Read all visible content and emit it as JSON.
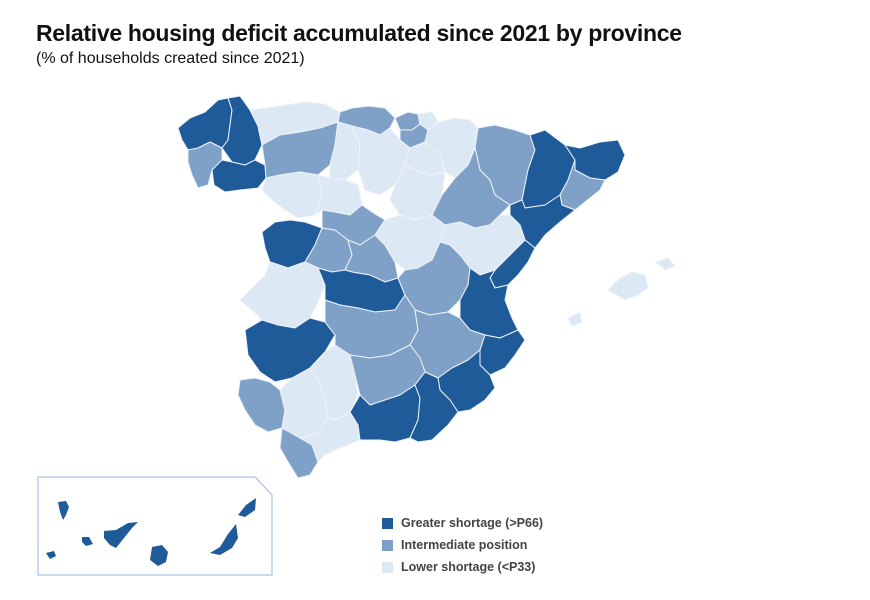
{
  "title": "Relative housing deficit accumulated since 2021 by province",
  "subtitle": "(% of households created since 2021)",
  "colors": {
    "high": "#1f5b99",
    "mid": "#7fa1c8",
    "low": "#dce8f4",
    "inset_border": "#a9c4e0"
  },
  "legend": [
    {
      "key": "high",
      "label": "Greater shortage (>P66)"
    },
    {
      "key": "mid",
      "label": "Intermediate position"
    },
    {
      "key": "low",
      "label": "Lower shortage (<P33)"
    }
  ],
  "chart_data": {
    "type": "choropleth",
    "title": "Relative housing deficit accumulated since 2021 by province",
    "subtitle": "(% of households created since 2021)",
    "classes": [
      "Greater shortage (>P66)",
      "Intermediate position",
      "Lower shortage (<P33)"
    ],
    "legend_position": "bottom-center",
    "regions": [
      {
        "name": "A Coruña",
        "class": "high"
      },
      {
        "name": "Lugo",
        "class": "high"
      },
      {
        "name": "Pontevedra",
        "class": "mid"
      },
      {
        "name": "Ourense",
        "class": "high"
      },
      {
        "name": "Asturias",
        "class": "low"
      },
      {
        "name": "Cantabria",
        "class": "mid"
      },
      {
        "name": "Bizkaia",
        "class": "mid"
      },
      {
        "name": "Gipuzkoa",
        "class": "low"
      },
      {
        "name": "Araba",
        "class": "mid"
      },
      {
        "name": "Navarra",
        "class": "low"
      },
      {
        "name": "León",
        "class": "mid"
      },
      {
        "name": "Palencia",
        "class": "low"
      },
      {
        "name": "Burgos",
        "class": "low"
      },
      {
        "name": "La Rioja",
        "class": "low"
      },
      {
        "name": "Zamora",
        "class": "low"
      },
      {
        "name": "Valladolid",
        "class": "low"
      },
      {
        "name": "Soria",
        "class": "low"
      },
      {
        "name": "Huesca",
        "class": "mid"
      },
      {
        "name": "Zaragoza",
        "class": "mid"
      },
      {
        "name": "Lleida",
        "class": "high"
      },
      {
        "name": "Girona",
        "class": "high"
      },
      {
        "name": "Barcelona",
        "class": "mid"
      },
      {
        "name": "Tarragona",
        "class": "high"
      },
      {
        "name": "Salamanca",
        "class": "high"
      },
      {
        "name": "Ávila",
        "class": "mid"
      },
      {
        "name": "Segovia",
        "class": "mid"
      },
      {
        "name": "Madrid",
        "class": "mid"
      },
      {
        "name": "Guadalajara",
        "class": "low"
      },
      {
        "name": "Teruel",
        "class": "low"
      },
      {
        "name": "Castellón",
        "class": "high"
      },
      {
        "name": "Cáceres",
        "class": "low"
      },
      {
        "name": "Toledo",
        "class": "high"
      },
      {
        "name": "Cuenca",
        "class": "mid"
      },
      {
        "name": "Valencia",
        "class": "high"
      },
      {
        "name": "Badajoz",
        "class": "high"
      },
      {
        "name": "Ciudad Real",
        "class": "mid"
      },
      {
        "name": "Albacete",
        "class": "mid"
      },
      {
        "name": "Alicante",
        "class": "high"
      },
      {
        "name": "Huelva",
        "class": "mid"
      },
      {
        "name": "Sevilla",
        "class": "low"
      },
      {
        "name": "Córdoba",
        "class": "low"
      },
      {
        "name": "Jaén",
        "class": "mid"
      },
      {
        "name": "Murcia",
        "class": "high"
      },
      {
        "name": "Cádiz",
        "class": "mid"
      },
      {
        "name": "Málaga",
        "class": "low"
      },
      {
        "name": "Granada",
        "class": "high"
      },
      {
        "name": "Almería",
        "class": "high"
      },
      {
        "name": "Illes Balears",
        "class": "low"
      },
      {
        "name": "Santa Cruz de Tenerife",
        "class": "high"
      },
      {
        "name": "Las Palmas",
        "class": "high"
      }
    ]
  }
}
